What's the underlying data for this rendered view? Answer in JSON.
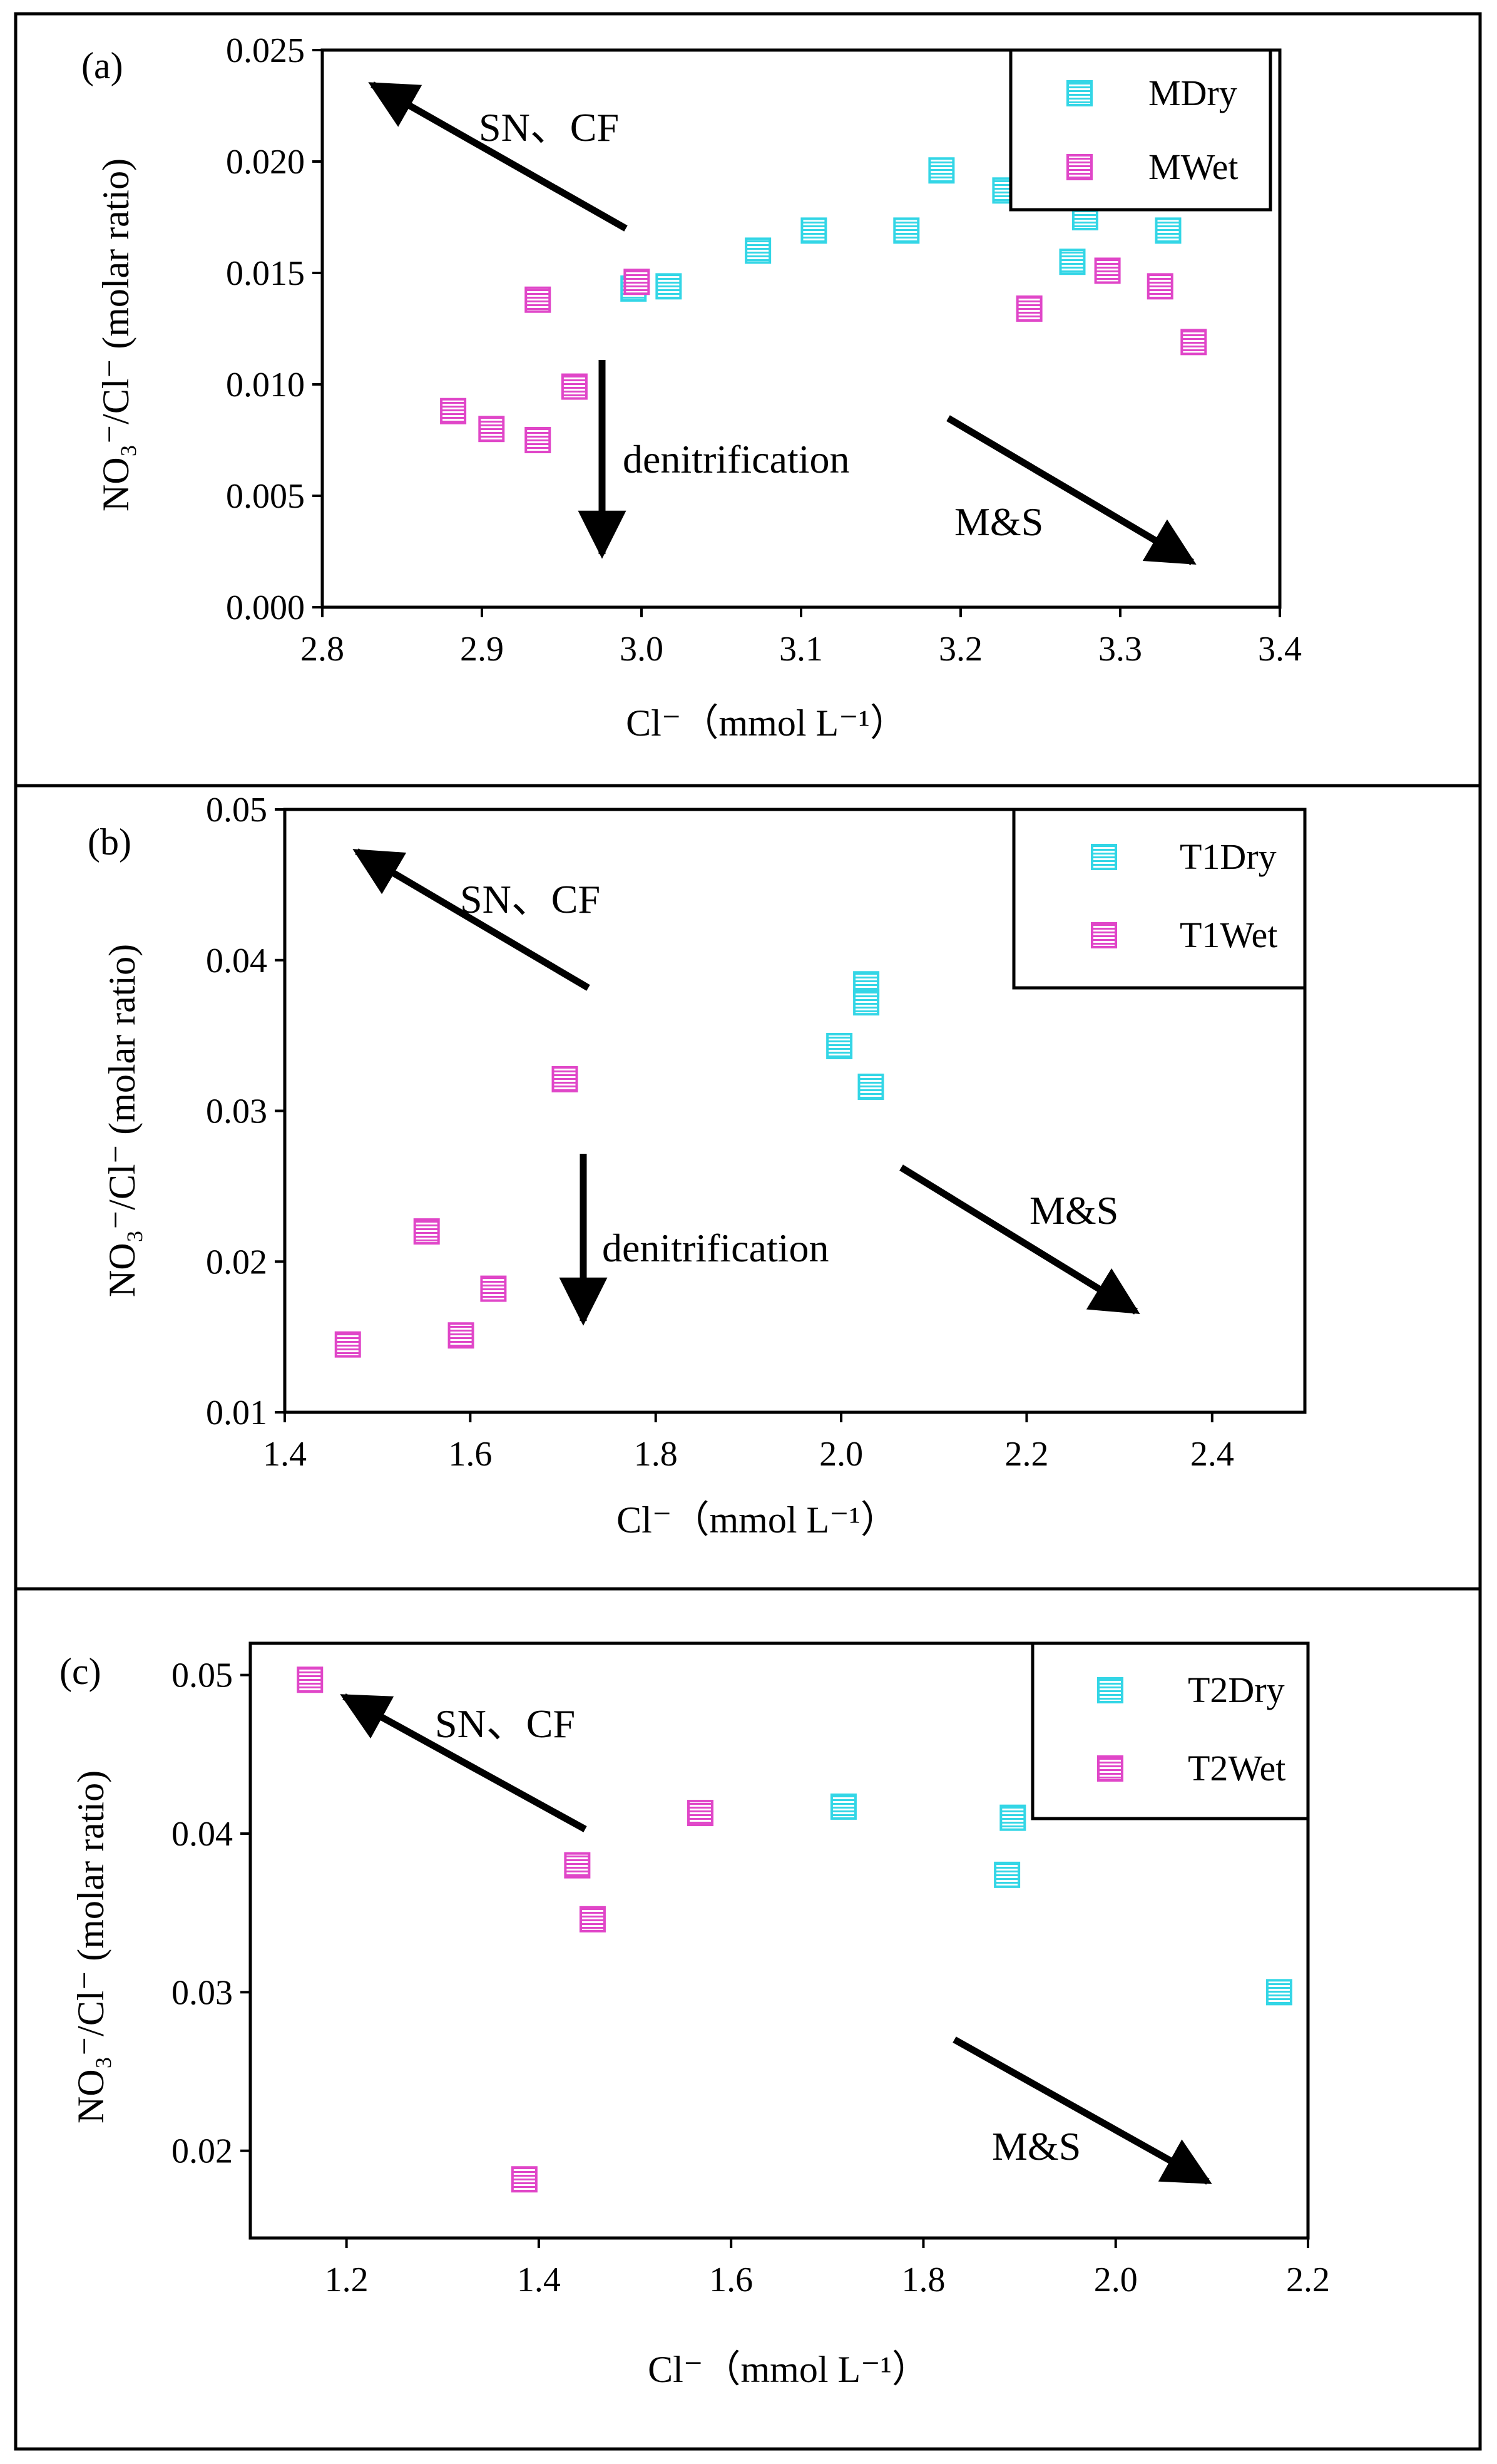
{
  "chart_data": [
    {
      "type": "scatter",
      "panel_label": "(a)",
      "ylabel": "NO₃⁻/Cl⁻ (molar ratio)",
      "xlabel": "Cl⁻（mmol L⁻¹）",
      "xlim": [
        2.8,
        3.4
      ],
      "ylim": [
        0.0,
        0.025
      ],
      "xticks": [
        "2.8",
        "2.9",
        "3.0",
        "3.1",
        "3.2",
        "3.3",
        "3.4"
      ],
      "yticks": [
        "0.000",
        "0.005",
        "0.010",
        "0.015",
        "0.020",
        "0.025"
      ],
      "legend_position": "top-right",
      "annotations": {
        "sn_cf": "SN、CF",
        "denitrification": "denitrification",
        "ms": "M&S"
      },
      "series": [
        {
          "name": "MDry",
          "color": "#33d6e6",
          "x": [
            2.995,
            3.017,
            3.073,
            3.108,
            3.166,
            3.188,
            3.228,
            3.27,
            3.278,
            3.33
          ],
          "y": [
            0.0143,
            0.0144,
            0.016,
            0.0169,
            0.0169,
            0.0196,
            0.0187,
            0.0155,
            0.0175,
            0.0169
          ]
        },
        {
          "name": "MWet",
          "color": "#e046c8",
          "x": [
            2.882,
            2.906,
            2.935,
            2.935,
            2.958,
            2.997,
            3.243,
            3.292,
            3.325,
            3.346
          ],
          "y": [
            0.0088,
            0.008,
            0.0138,
            0.0075,
            0.0099,
            0.0146,
            0.0134,
            0.0151,
            0.0144,
            0.0119
          ]
        }
      ]
    },
    {
      "type": "scatter",
      "panel_label": "(b)",
      "ylabel": "NO₃⁻/Cl⁻ (molar ratio)",
      "xlabel": "Cl⁻（mmol L⁻¹）",
      "xlim": [
        1.4,
        2.5
      ],
      "ylim": [
        0.01,
        0.05
      ],
      "xticks": [
        "1.4",
        "1.6",
        "1.8",
        "2.0",
        "2.2",
        "2.4"
      ],
      "yticks": [
        "0.01",
        "0.02",
        "0.03",
        "0.04",
        "0.05"
      ],
      "legend_position": "top-right",
      "annotations": {
        "sn_cf": "SN、CF",
        "denitrification": "denitrification",
        "ms": "M&S"
      },
      "series": [
        {
          "name": "T1Dry",
          "color": "#33d6e6",
          "x": [
            1.998,
            2.027,
            2.027,
            2.032
          ],
          "y": [
            0.0343,
            0.0384,
            0.0372,
            0.0316
          ]
        },
        {
          "name": "T1Wet",
          "color": "#e046c8",
          "x": [
            1.468,
            1.553,
            1.59,
            1.625,
            1.702
          ],
          "y": [
            0.0145,
            0.022,
            0.0151,
            0.0182,
            0.0321
          ]
        }
      ]
    },
    {
      "type": "scatter",
      "panel_label": "(c)",
      "ylabel": "NO₃⁻/Cl⁻ (molar ratio)",
      "xlabel": "Cl⁻（mmol L⁻¹）",
      "xlim": [
        1.1,
        2.2
      ],
      "ylim": [
        0.0145,
        0.052
      ],
      "xticks": [
        "1.2",
        "1.4",
        "1.6",
        "1.8",
        "2.0",
        "2.2"
      ],
      "yticks": [
        "0.02",
        "0.03",
        "0.04",
        "0.05"
      ],
      "legend_position": "top-right",
      "annotations": {
        "sn_cf": "SN、CF",
        "ms": "M&S"
      },
      "series": [
        {
          "name": "T2Dry",
          "color": "#33d6e6",
          "x": [
            1.717,
            1.887,
            1.893,
            2.17
          ],
          "y": [
            0.0417,
            0.0374,
            0.041,
            0.03
          ]
        },
        {
          "name": "T2Wet",
          "color": "#e046c8",
          "x": [
            1.162,
            1.385,
            1.44,
            1.456,
            1.568
          ],
          "y": [
            0.0497,
            0.0182,
            0.038,
            0.0346,
            0.0413
          ]
        }
      ]
    }
  ]
}
